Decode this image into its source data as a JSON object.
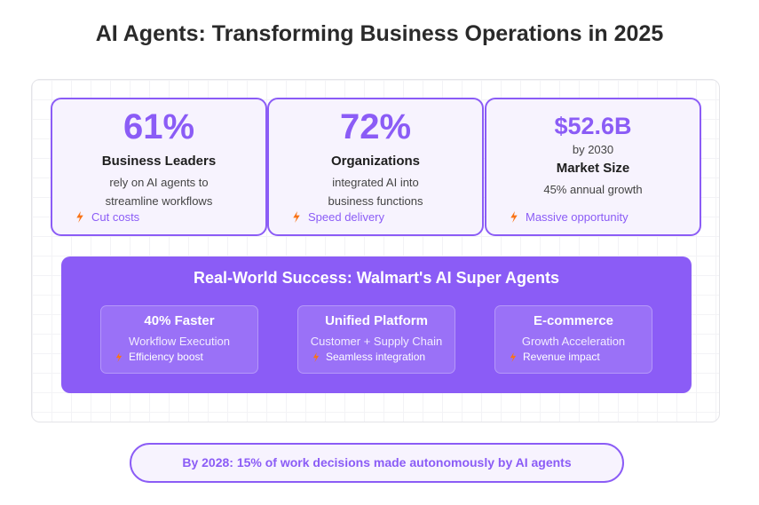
{
  "title": "AI Agents: Transforming Business Operations in 2025",
  "stats": [
    {
      "value": "61%",
      "label": "Business Leaders",
      "desc_lines": [
        "rely on AI agents to",
        "streamline workflows"
      ],
      "tag": "Cut costs"
    },
    {
      "value": "72%",
      "label": "Organizations",
      "desc_lines": [
        "integrated AI into",
        "business functions"
      ],
      "tag": "Speed delivery"
    },
    {
      "value": "$52.6B",
      "sub": "by 2030",
      "label": "Market Size",
      "desc_lines": [
        "45% annual growth"
      ],
      "tag": "Massive opportunity"
    }
  ],
  "walmart": {
    "title": "Real-World Success: Walmart's AI Super Agents",
    "cards": [
      {
        "title": "40% Faster",
        "desc": "Workflow Execution",
        "tag": "Efficiency boost"
      },
      {
        "title": "Unified Platform",
        "desc": "Customer + Supply Chain",
        "tag": "Seamless integration"
      },
      {
        "title": "E-commerce",
        "desc": "Growth Acceleration",
        "tag": "Revenue impact"
      }
    ]
  },
  "footer": "By 2028: 15% of work decisions made autonomously by AI agents",
  "colors": {
    "accent": "#8b5cf6",
    "bolt": "#f97316",
    "card_bg": "#f7f3fe"
  },
  "icons": {
    "tag_icon": "lightning-bolt-icon"
  }
}
